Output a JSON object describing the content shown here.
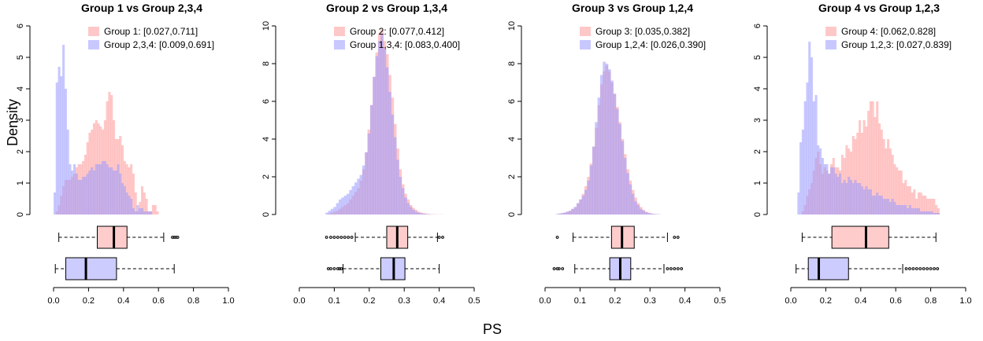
{
  "figure": {
    "ylabel": "Density",
    "xlabel": "PS"
  },
  "colors": {
    "group_fill": "#ff9a9a",
    "rest_fill": "#9a9aff",
    "group_box": "#ffcccc",
    "rest_box": "#ccccff",
    "axis": "#000000"
  },
  "chart_data": [
    {
      "type": "histogram",
      "title": "Group 1 vs Group 2,3,4",
      "xlim": [
        0,
        1.0
      ],
      "ylim": [
        0,
        6
      ],
      "xticks": [
        0.0,
        0.2,
        0.4,
        0.6,
        0.8,
        1.0
      ],
      "xtick_labels": [
        "0.0",
        "0.2",
        "0.4",
        "0.6",
        "0.8",
        "1.0"
      ],
      "yticks": [
        0,
        1,
        2,
        3,
        4,
        5,
        6
      ],
      "ytick_labels": [
        "0",
        "1",
        "2",
        "3",
        "4",
        "5",
        "6"
      ],
      "bin_start": 0.0,
      "bin_width": 0.0125,
      "legend": [
        {
          "label": "Group 1: [0.027,0.711]",
          "series": "group"
        },
        {
          "label": "Group 2,3,4: [0.009,0.691]",
          "series": "rest"
        }
      ],
      "series": [
        {
          "name": "Group 1",
          "key": "group",
          "values": [
            0,
            0.1,
            0.3,
            0.6,
            0.9,
            1.1,
            1.1,
            1.1,
            1.2,
            1.3,
            1.5,
            1.6,
            1.6,
            1.7,
            1.9,
            2.3,
            2.6,
            2.7,
            2.9,
            3.0,
            2.9,
            2.8,
            2.7,
            3.0,
            3.6,
            3.9,
            3.8,
            3.0,
            2.4,
            2.4,
            2.5,
            2.2,
            1.7,
            1.6,
            1.5,
            1.6,
            1.3,
            0.7,
            0.1,
            0.4,
            0.9,
            0.7,
            0.5,
            0.1,
            0.1,
            0.3,
            0.3,
            0.1,
            0,
            0,
            0,
            0,
            0,
            0,
            0,
            0,
            0,
            0,
            0,
            0,
            0,
            0,
            0,
            0,
            0,
            0,
            0,
            0,
            0,
            0,
            0,
            0,
            0,
            0,
            0,
            0,
            0,
            0,
            0,
            0
          ]
        },
        {
          "name": "Group 2,3,4",
          "key": "rest",
          "values": [
            0.7,
            4.2,
            4.7,
            4.4,
            5.4,
            4.0,
            2.7,
            1.6,
            1.4,
            1.6,
            1.3,
            1.1,
            1.1,
            1.2,
            1.2,
            1.3,
            1.4,
            1.5,
            1.4,
            1.6,
            1.6,
            1.6,
            1.7,
            1.7,
            1.6,
            1.5,
            1.5,
            1.4,
            1.4,
            1.6,
            1.3,
            1.0,
            0.9,
            0.7,
            0.6,
            0.5,
            0.2,
            0.1,
            0.3,
            0.2,
            0.2,
            0.1,
            0.1,
            0.1,
            0.1,
            0,
            0,
            0,
            0,
            0,
            0,
            0,
            0,
            0,
            0,
            0,
            0,
            0,
            0,
            0,
            0,
            0,
            0,
            0,
            0,
            0,
            0,
            0,
            0,
            0,
            0,
            0,
            0,
            0,
            0,
            0,
            0,
            0,
            0,
            0
          ]
        }
      ],
      "boxplots": [
        {
          "series": "group",
          "whisker_low": 0.03,
          "q1": 0.25,
          "median": 0.345,
          "q3": 0.42,
          "whisker_high": 0.63,
          "outliers": [
            0.68,
            0.69,
            0.7,
            0.71
          ]
        },
        {
          "series": "rest",
          "whisker_low": 0.01,
          "q1": 0.07,
          "median": 0.185,
          "q3": 0.36,
          "whisker_high": 0.69,
          "outliers": []
        }
      ]
    },
    {
      "type": "histogram",
      "title": "Group 2 vs Group 1,3,4",
      "xlim": [
        0,
        0.5
      ],
      "ylim": [
        0,
        10
      ],
      "xticks": [
        0.0,
        0.1,
        0.2,
        0.3,
        0.4,
        0.5
      ],
      "xtick_labels": [
        "0.0",
        "0.1",
        "0.2",
        "0.3",
        "0.4",
        "0.5"
      ],
      "yticks": [
        0,
        2,
        4,
        6,
        8,
        10
      ],
      "ytick_labels": [
        "0",
        "2",
        "4",
        "6",
        "8",
        "10"
      ],
      "bin_start": 0.075,
      "bin_width": 0.0075,
      "legend": [
        {
          "label": "Group 2: [0.077,0.412]",
          "series": "group"
        },
        {
          "label": "Group 1,3,4: [0.083,0.400]",
          "series": "rest"
        }
      ],
      "series": [
        {
          "name": "Group 2",
          "key": "group",
          "values": [
            0.02,
            0.05,
            0.1,
            0.15,
            0.2,
            0.3,
            0.4,
            0.5,
            0.6,
            0.8,
            1.0,
            1.2,
            1.4,
            1.8,
            2.4,
            3.3,
            4.5,
            5.8,
            7.3,
            8.6,
            9.6,
            9.8,
            9.2,
            8.5,
            7.4,
            6.2,
            4.8,
            3.5,
            2.4,
            1.6,
            1.1,
            0.8,
            0.5,
            0.35,
            0.25,
            0.15,
            0.1,
            0.07,
            0.05,
            0.03,
            0.02,
            0.02,
            0.01,
            0.01,
            0.01
          ]
        },
        {
          "name": "Group 1,3,4",
          "key": "rest",
          "values": [
            0.1,
            0.2,
            0.3,
            0.4,
            0.6,
            0.8,
            0.9,
            1.0,
            1.1,
            1.3,
            1.5,
            1.7,
            1.9,
            2.1,
            2.6,
            3.3,
            4.3,
            5.8,
            7.3,
            8.4,
            9.2,
            9.6,
            8.8,
            7.8,
            6.5,
            5.3,
            4.1,
            2.9,
            2.0,
            1.4,
            0.9,
            0.6,
            0.4,
            0.25,
            0.15,
            0.1,
            0.06,
            0.04,
            0.02,
            0.01,
            0,
            0,
            0,
            0,
            0
          ]
        }
      ],
      "boxplots": [
        {
          "series": "group",
          "whisker_low": 0.16,
          "q1": 0.25,
          "median": 0.28,
          "q3": 0.31,
          "whisker_high": 0.395,
          "outliers": [
            0.078,
            0.09,
            0.1,
            0.11,
            0.12,
            0.13,
            0.14,
            0.15,
            0.4,
            0.41
          ]
        },
        {
          "series": "rest",
          "whisker_low": 0.125,
          "q1": 0.233,
          "median": 0.27,
          "q3": 0.302,
          "whisker_high": 0.4,
          "outliers": [
            0.083,
            0.09,
            0.1,
            0.11,
            0.115,
            0.12
          ]
        }
      ]
    },
    {
      "type": "histogram",
      "title": "Group 3 vs Group 1,2,4",
      "xlim": [
        0,
        0.5
      ],
      "ylim": [
        0,
        10
      ],
      "xticks": [
        0.0,
        0.1,
        0.2,
        0.3,
        0.4,
        0.5
      ],
      "xtick_labels": [
        "0.0",
        "0.1",
        "0.2",
        "0.3",
        "0.4",
        "0.5"
      ],
      "yticks": [
        0,
        2,
        4,
        6,
        8,
        10
      ],
      "ytick_labels": [
        "0",
        "2",
        "4",
        "6",
        "8",
        "10"
      ],
      "bin_start": 0.03,
      "bin_width": 0.0075,
      "legend": [
        {
          "label": "Group 3: [0.035,0.382]",
          "series": "group"
        },
        {
          "label": "Group 1,2,4: [0.026,0.390]",
          "series": "rest"
        }
      ],
      "series": [
        {
          "name": "Group 3",
          "key": "group",
          "values": [
            0.02,
            0.05,
            0.05,
            0.1,
            0.15,
            0.2,
            0.3,
            0.4,
            0.6,
            0.8,
            1.1,
            1.5,
            2.0,
            2.7,
            3.6,
            4.6,
            5.8,
            6.9,
            7.6,
            7.9,
            7.6,
            7.0,
            6.4,
            5.7,
            4.9,
            4.0,
            3.2,
            2.4,
            1.8,
            1.3,
            0.9,
            0.6,
            0.4,
            0.25,
            0.15,
            0.1,
            0.06,
            0.03,
            0.02,
            0.01,
            0,
            0,
            0,
            0,
            0,
            0,
            0
          ]
        },
        {
          "name": "Group 1,2,4",
          "key": "rest",
          "values": [
            0.02,
            0.05,
            0.08,
            0.1,
            0.15,
            0.2,
            0.3,
            0.4,
            0.6,
            0.8,
            1.0,
            1.3,
            1.8,
            2.6,
            3.6,
            4.9,
            6.2,
            7.4,
            8.1,
            8.0,
            7.7,
            7.1,
            6.4,
            5.6,
            4.8,
            3.9,
            3.0,
            2.2,
            1.6,
            1.1,
            0.7,
            0.5,
            0.3,
            0.2,
            0.12,
            0.08,
            0.05,
            0.03,
            0.02,
            0.01,
            0,
            0,
            0,
            0,
            0,
            0,
            0
          ]
        }
      ],
      "boxplots": [
        {
          "series": "group",
          "whisker_low": 0.08,
          "q1": 0.19,
          "median": 0.22,
          "q3": 0.255,
          "whisker_high": 0.35,
          "outliers": [
            0.035,
            0.37,
            0.38
          ]
        },
        {
          "series": "rest",
          "whisker_low": 0.085,
          "q1": 0.185,
          "median": 0.215,
          "q3": 0.245,
          "whisker_high": 0.34,
          "outliers": [
            0.026,
            0.035,
            0.04,
            0.05,
            0.35,
            0.36,
            0.37,
            0.38,
            0.39
          ]
        }
      ]
    },
    {
      "type": "histogram",
      "title": "Group 4 vs Group 1,2,3",
      "xlim": [
        0,
        1.0
      ],
      "ylim": [
        0,
        6
      ],
      "xticks": [
        0.0,
        0.2,
        0.4,
        0.6,
        0.8,
        1.0
      ],
      "xtick_labels": [
        "0.0",
        "0.2",
        "0.4",
        "0.6",
        "0.8",
        "1.0"
      ],
      "yticks": [
        0,
        1,
        2,
        3,
        4,
        5,
        6
      ],
      "ytick_labels": [
        "0",
        "1",
        "2",
        "3",
        "4",
        "5",
        "6"
      ],
      "bin_start": 0.0,
      "bin_width": 0.0125,
      "legend": [
        {
          "label": "Group 4: [0.062,0.828]",
          "series": "group"
        },
        {
          "label": "Group 1,2,3: [0.027,0.839]",
          "series": "rest"
        }
      ],
      "series": [
        {
          "name": "Group 4",
          "key": "group",
          "values": [
            0,
            0,
            0,
            0,
            0,
            0.1,
            0.3,
            0.6,
            0.8,
            1.0,
            1.4,
            1.8,
            2.0,
            1.6,
            1.3,
            1.5,
            1.4,
            1.3,
            1.6,
            1.8,
            1.5,
            1.5,
            1.4,
            1.9,
            1.8,
            2.2,
            2.1,
            2.0,
            2.5,
            2.4,
            2.6,
            3.0,
            2.6,
            3.0,
            2.8,
            3.3,
            3.6,
            3.6,
            3.1,
            3.6,
            2.9,
            2.7,
            2.4,
            2.1,
            2.4,
            2.1,
            1.9,
            1.6,
            1.5,
            1.4,
            1.4,
            1.0,
            1.1,
            0.9,
            0.9,
            0.7,
            0.8,
            0.5,
            0.7,
            0.7,
            0.6,
            0.6,
            0.5,
            0.5,
            0.5,
            0.5,
            0.3,
            0.2,
            0,
            0,
            0,
            0,
            0,
            0,
            0,
            0,
            0,
            0,
            0,
            0
          ]
        },
        {
          "name": "Group 1,2,3",
          "key": "rest",
          "values": [
            0,
            0,
            0,
            0.7,
            2.3,
            2.7,
            3.6,
            4.2,
            5.5,
            5.0,
            3.6,
            3.8,
            2.2,
            2.1,
            1.8,
            1.6,
            1.6,
            1.3,
            1.5,
            1.5,
            1.3,
            1.2,
            1.3,
            1.0,
            1.1,
            1.0,
            1.2,
            1.1,
            1.0,
            1.1,
            1.0,
            1.0,
            0.9,
            0.8,
            0.9,
            0.8,
            0.8,
            0.6,
            0.6,
            0.7,
            0.6,
            0.6,
            0.5,
            0.5,
            0.5,
            0.4,
            0.5,
            0.4,
            0.3,
            0.3,
            0.3,
            0.3,
            0.3,
            0.2,
            0.3,
            0.2,
            0.2,
            0.2,
            0.2,
            0.1,
            0.1,
            0.1,
            0.1,
            0.1,
            0.1,
            0.05,
            0.05,
            0.05,
            0,
            0,
            0,
            0,
            0,
            0,
            0,
            0,
            0,
            0,
            0,
            0
          ]
        }
      ],
      "boxplots": [
        {
          "series": "group",
          "whisker_low": 0.065,
          "q1": 0.235,
          "median": 0.43,
          "q3": 0.56,
          "whisker_high": 0.83,
          "outliers": []
        },
        {
          "series": "rest",
          "whisker_low": 0.03,
          "q1": 0.1,
          "median": 0.16,
          "q3": 0.33,
          "whisker_high": 0.64,
          "outliers": [
            0.66,
            0.68,
            0.7,
            0.72,
            0.74,
            0.76,
            0.78,
            0.8,
            0.82,
            0.839
          ]
        }
      ]
    }
  ]
}
